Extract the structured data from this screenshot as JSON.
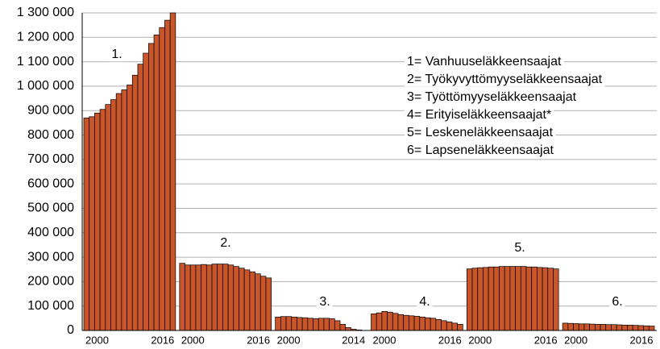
{
  "chart_data": {
    "type": "bar",
    "ylim": [
      0,
      1300000
    ],
    "yticks": [
      0,
      {
        "value": 100000,
        "label": "100 000"
      },
      {
        "value": 200000,
        "label": "200 000"
      },
      {
        "value": 300000,
        "label": "300 000"
      },
      {
        "value": 400000,
        "label": "400 000"
      },
      {
        "value": 500000,
        "label": "500 000"
      },
      {
        "value": 600000,
        "label": "600 000"
      },
      {
        "value": 700000,
        "label": "700 000"
      },
      {
        "value": 800000,
        "label": "800 000"
      },
      {
        "value": 900000,
        "label": "900 000"
      },
      {
        "value": 1000000,
        "label": "1 000 000"
      },
      {
        "value": 1100000,
        "label": "1 100 000"
      },
      {
        "value": 1200000,
        "label": "1 200 000"
      },
      {
        "value": 1300000,
        "label": "1 300 000"
      }
    ],
    "grid": true,
    "color": "#c8562a",
    "legend": [
      "1= Vanhuuseläkkeensaajat",
      "2= Työkyvyttömyyseläkkeensaajat",
      "3= Työttömyyseläkkeensaajat",
      "4= Erityiseläkkeensaajat*",
      "5= Leskeneläkkeensaajat",
      "6= Lapseneläkkeensaajat"
    ],
    "groups": [
      {
        "name": "1.",
        "categories": [
          "2000",
          null,
          null,
          null,
          null,
          null,
          null,
          null,
          null,
          null,
          null,
          null,
          null,
          null,
          null,
          null,
          "2016"
        ],
        "values": [
          870000,
          875000,
          890000,
          905000,
          925000,
          945000,
          970000,
          985000,
          1005000,
          1045000,
          1090000,
          1135000,
          1175000,
          1210000,
          1240000,
          1270000,
          1300000
        ]
      },
      {
        "name": "2.",
        "categories": [
          "2000",
          null,
          null,
          null,
          null,
          null,
          null,
          null,
          null,
          null,
          null,
          null,
          null,
          null,
          null,
          null,
          "2016"
        ],
        "values": [
          275000,
          268000,
          268000,
          268000,
          270000,
          268000,
          272000,
          272000,
          272000,
          268000,
          262000,
          255000,
          248000,
          240000,
          232000,
          222000,
          215000
        ]
      },
      {
        "name": "3.",
        "categories": [
          "2000",
          null,
          null,
          null,
          null,
          null,
          null,
          null,
          null,
          null,
          null,
          null,
          null,
          null,
          "2014",
          null,
          null
        ],
        "values": [
          55000,
          57000,
          57000,
          55000,
          53000,
          52000,
          50000,
          48000,
          50000,
          50000,
          48000,
          40000,
          25000,
          12000,
          5000,
          2000,
          0
        ]
      },
      {
        "name": "4.",
        "categories": [
          "2000",
          null,
          null,
          null,
          null,
          null,
          null,
          null,
          null,
          null,
          null,
          null,
          null,
          null,
          null,
          null,
          "2016"
        ],
        "values": [
          68000,
          72000,
          78000,
          75000,
          70000,
          65000,
          62000,
          60000,
          58000,
          55000,
          52000,
          50000,
          45000,
          40000,
          35000,
          30000,
          25000
        ]
      },
      {
        "name": "5.",
        "categories": [
          "2000",
          null,
          null,
          null,
          null,
          null,
          null,
          null,
          null,
          null,
          null,
          null,
          null,
          null,
          null,
          null,
          "2016"
        ],
        "values": [
          252000,
          255000,
          257000,
          258000,
          260000,
          260000,
          262000,
          262000,
          262000,
          262000,
          262000,
          260000,
          260000,
          258000,
          257000,
          255000,
          252000
        ]
      },
      {
        "name": "6.",
        "categories": [
          "2000",
          null,
          null,
          null,
          null,
          null,
          null,
          null,
          null,
          null,
          null,
          null,
          null,
          null,
          null,
          null,
          "2016"
        ],
        "values": [
          30000,
          29000,
          28000,
          27000,
          27000,
          26000,
          25000,
          25000,
          24000,
          24000,
          23000,
          22000,
          22000,
          21000,
          20000,
          19000,
          18000
        ]
      }
    ]
  }
}
